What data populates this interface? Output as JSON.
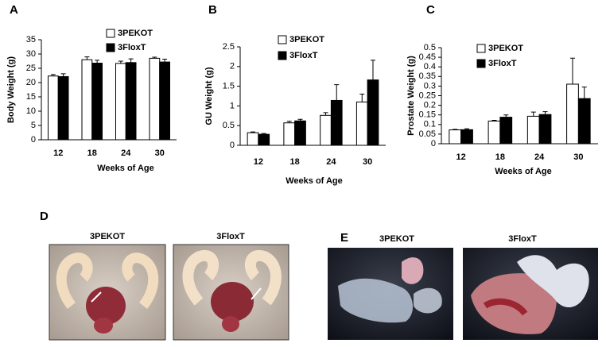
{
  "chart_data": [
    {
      "type": "bar",
      "panel_label": "A",
      "y_label": "Body Weight (g)",
      "x_label": "Weeks of Age",
      "categories": [
        "12",
        "18",
        "24",
        "30"
      ],
      "series": [
        {
          "name": "3PEKOT",
          "color": "#ffffff",
          "values": [
            22.3,
            28,
            26.7,
            28.5
          ],
          "errors": [
            0.5,
            1,
            0.8,
            0.4
          ]
        },
        {
          "name": "3FloxT",
          "color": "#000000",
          "values": [
            22.1,
            26.8,
            27,
            27.2
          ],
          "errors": [
            1,
            1,
            1.3,
            1
          ]
        }
      ],
      "ylim": [
        0,
        35
      ],
      "yticks": [
        0,
        5,
        10,
        15,
        20,
        25,
        30,
        35
      ]
    },
    {
      "type": "bar",
      "panel_label": "B",
      "y_label": "GU Weight (g)",
      "x_label": "Weeks of Age",
      "categories": [
        "12",
        "18",
        "24",
        "30"
      ],
      "series": [
        {
          "name": "3PEKOT",
          "color": "#ffffff",
          "values": [
            0.32,
            0.57,
            0.76,
            1.1
          ],
          "errors": [
            0.02,
            0.04,
            0.07,
            0.2
          ]
        },
        {
          "name": "3FloxT",
          "color": "#000000",
          "values": [
            0.28,
            0.62,
            1.14,
            1.66
          ],
          "errors": [
            0.02,
            0.04,
            0.4,
            0.5
          ]
        }
      ],
      "ylim": [
        0,
        2.5
      ],
      "yticks": [
        0,
        0.5,
        1,
        1.5,
        2,
        2.5
      ]
    },
    {
      "type": "bar",
      "panel_label": "C",
      "y_label": "Prostate Weight (g)",
      "x_label": "Weeks of Age",
      "categories": [
        "12",
        "18",
        "24",
        "30"
      ],
      "series": [
        {
          "name": "3PEKOT",
          "color": "#ffffff",
          "values": [
            0.072,
            0.118,
            0.143,
            0.31
          ],
          "errors": [
            0.003,
            0.004,
            0.022,
            0.135
          ]
        },
        {
          "name": "3FloxT",
          "color": "#000000",
          "values": [
            0.073,
            0.138,
            0.152,
            0.235
          ],
          "errors": [
            0.005,
            0.012,
            0.015,
            0.06
          ]
        }
      ],
      "ylim": [
        0,
        0.5
      ],
      "yticks": [
        0,
        0.05,
        0.1,
        0.15,
        0.2,
        0.25,
        0.3,
        0.35,
        0.4,
        0.45,
        0.5
      ]
    }
  ],
  "photo_panels": [
    {
      "panel_label": "D",
      "titles": [
        "3PEKOT",
        "3FloxT"
      ]
    },
    {
      "panel_label": "E",
      "titles": [
        "3PEKOT",
        "3FloxT"
      ]
    }
  ]
}
